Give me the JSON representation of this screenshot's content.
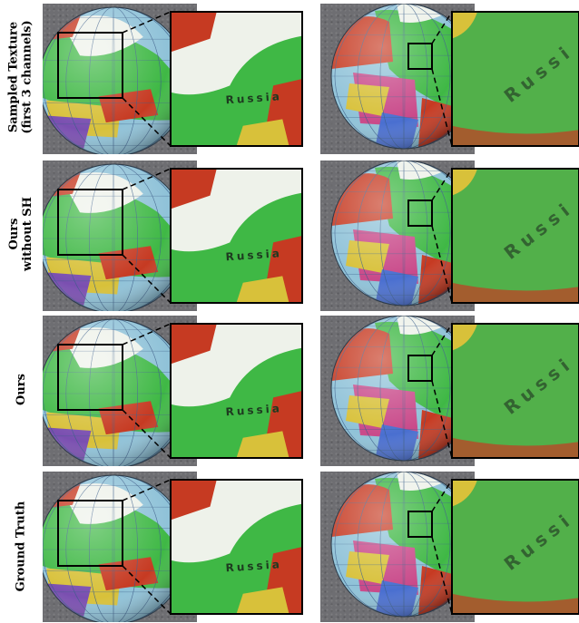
{
  "rows": [
    {
      "label_lines": [
        "Sampled Texture",
        "(first 3 channels)"
      ]
    },
    {
      "label_lines": [
        "Ours",
        "without SH"
      ]
    },
    {
      "label_lines": [
        "Ours"
      ]
    },
    {
      "label_lines": [
        "Ground Truth"
      ]
    }
  ],
  "map_labels": {
    "left_zoom_text": "Russia",
    "right_zoom_text": "Russi"
  },
  "colors": {
    "land_green": "#3fb845",
    "ice_white": "#eef2ea",
    "ocean_blue": "#8fc2d8",
    "red_region": "#c63a22",
    "yellow_region": "#d8c13a",
    "background_carpet": "#6e6e72"
  }
}
